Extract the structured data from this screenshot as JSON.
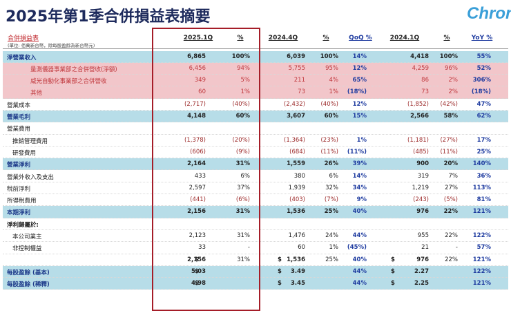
{
  "header": {
    "title": "2025年第1季合併損益表摘要",
    "logo": "Chron"
  },
  "table": {
    "caption": "合併損益表",
    "unit_note": "(單位: 佰萬新台幣，除每股盈餘為新台幣元)",
    "columns": [
      "2025.1Q",
      "%",
      "2024.4Q",
      "%",
      "QoQ %",
      "2024.1Q",
      "%",
      "YoY %"
    ],
    "rows": [
      {
        "label": "淨營業收入",
        "fill": "#b7dde8",
        "cells": [
          "6,865",
          "100%",
          "6,039",
          "100%",
          "14%",
          "4,418",
          "100%",
          "55%"
        ],
        "items": [
          {
            "label": "量測儀器事業部之合併營收(淨額)",
            "fill": "#f2c6ca",
            "cells": [
              "6,456",
              "94%",
              "5,755",
              "95%",
              "12%",
              "4,259",
              "96%",
              "52%"
            ]
          },
          {
            "label": "威光自動化事業部之合併營收",
            "fill": "#f2c6ca",
            "cells": [
              "349",
              "5%",
              "211",
              "4%",
              "65%",
              "86",
              "2%",
              "306%"
            ]
          },
          {
            "label": "其他",
            "fill": "#f2c6ca",
            "cells": [
              "60",
              "1%",
              "73",
              "1%",
              "(18%)",
              "73",
              "2%",
              "(18%)"
            ]
          }
        ]
      },
      {
        "label": "營業成本",
        "cells": [
          "(2,717)",
          "(40%)",
          "(2,432)",
          "(40%)",
          "12%",
          "(1,852)",
          "(42%)",
          "47%"
        ]
      },
      {
        "label": "營業毛利",
        "fill": "#b7dde8",
        "cells": [
          "4,148",
          "60%",
          "3,607",
          "60%",
          "15%",
          "2,566",
          "58%",
          "62%"
        ]
      },
      {
        "label": "營業費用",
        "items": [
          {
            "label": "推銷管理費用",
            "cells": [
              "(1,378)",
              "(20%)",
              "(1,364)",
              "(23%)",
              "1%",
              "(1,181)",
              "(27%)",
              "17%"
            ]
          },
          {
            "label": "研發費用",
            "cells": [
              "(606)",
              "(9%)",
              "(684)",
              "(11%)",
              "(11%)",
              "(485)",
              "(11%)",
              "25%"
            ]
          }
        ]
      },
      {
        "label": "營業淨利",
        "fill": "#b7dde8",
        "cells": [
          "2,164",
          "31%",
          "1,559",
          "26%",
          "39%",
          "900",
          "20%",
          "140%"
        ]
      },
      {
        "label": "營業外收入及支出",
        "cells": [
          "433",
          "6%",
          "380",
          "6%",
          "14%",
          "319",
          "7%",
          "36%"
        ]
      },
      {
        "label": "稅前淨利",
        "cells": [
          "2,597",
          "37%",
          "1,939",
          "32%",
          "34%",
          "1,219",
          "27%",
          "113%"
        ]
      },
      {
        "label": "所得稅費用",
        "cells": [
          "(441)",
          "(6%)",
          "(403)",
          "(7%)",
          "9%",
          "(243)",
          "(5%)",
          "81%"
        ]
      },
      {
        "label": "本期淨利",
        "fill": "#b7dde8",
        "cells": [
          "2,156",
          "31%",
          "1,536",
          "25%",
          "40%",
          "976",
          "22%",
          "121%"
        ]
      },
      {
        "label": "淨利歸屬於:",
        "items": [
          {
            "label": "本公司業主",
            "cells": [
              "2,123",
              "31%",
              "1,476",
              "24%",
              "44%",
              "955",
              "22%",
              "122%"
            ]
          },
          {
            "label": "非控制權益",
            "cells": [
              "33",
              "-",
              "60",
              "1%",
              "(45%)",
              "21",
              "-",
              "57%"
            ]
          }
        ]
      },
      {
        "cells": [
          [
            "$",
            "2,156"
          ],
          "31%",
          [
            "$",
            "1,536"
          ],
          "25%",
          "40%",
          [
            "$",
            "976"
          ],
          "22%",
          "121%"
        ]
      },
      {
        "label": "每股盈餘 (基本)",
        "fill": "#b7dde8",
        "cells": [
          [
            "$",
            "5.03"
          ],
          null,
          [
            "$",
            "3.49"
          ],
          null,
          "44%",
          [
            "$",
            "2.27"
          ],
          null,
          "122%"
        ]
      },
      {
        "label": "每股盈餘 (稀釋)",
        "fill": "#b7dde8",
        "cells": [
          [
            "$",
            "4.98"
          ],
          null,
          [
            "$",
            "3.45"
          ],
          null,
          "44%",
          [
            "$",
            "2.25"
          ],
          null,
          "121%"
        ]
      }
    ]
  }
}
